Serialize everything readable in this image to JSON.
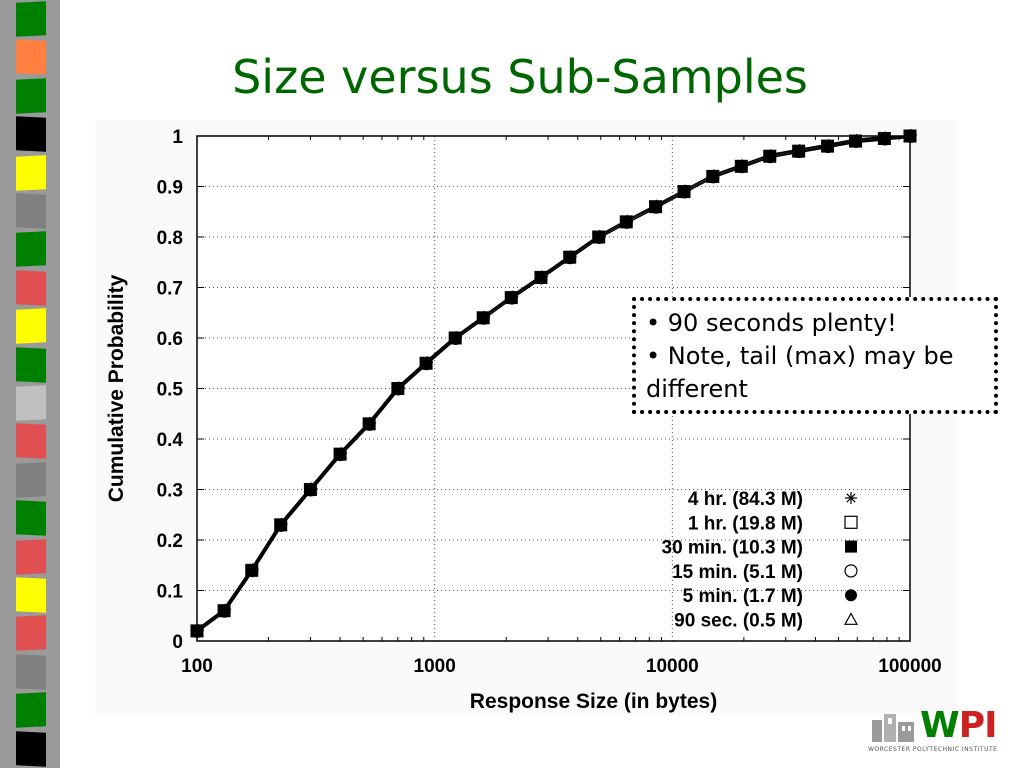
{
  "slide": {
    "title": "Size versus Sub-Samples",
    "title_color": "#006600"
  },
  "decor": {
    "strip_colors": [
      "#008000",
      "#ff8040",
      "#008000",
      "#000000",
      "#ffff00",
      "#808080",
      "#008000",
      "#e05050",
      "#ffff00",
      "#008000",
      "#c0c0c0",
      "#e05050",
      "#808080",
      "#008000",
      "#e05050",
      "#ffff00",
      "#e05050",
      "#808080",
      "#008000",
      "#000000"
    ]
  },
  "callout": {
    "line1": "• 90 seconds plenty!",
    "line2": "• Note, tail (max) may be",
    "line3": "different"
  },
  "logo": {
    "text_w": "W",
    "text_p": "P",
    "text_i": "I",
    "subtext": "WORCESTER POLYTECHNIC INSTITUTE",
    "color_w": "#008000",
    "color_pi": "#cc2222"
  },
  "chart_data": {
    "type": "line",
    "xlabel": "Response Size (in bytes)",
    "ylabel": "Cumulative Probability",
    "x_scale": "log",
    "xlim": [
      100,
      100000
    ],
    "ylim": [
      0,
      1
    ],
    "x_ticks": [
      "100",
      "1000",
      "10000",
      "100000"
    ],
    "y_ticks": [
      "0",
      "0.1",
      "0.2",
      "0.3",
      "0.4",
      "0.5",
      "0.6",
      "0.7",
      "0.8",
      "0.9",
      "1"
    ],
    "grid": true,
    "legend_position": "bottom-right",
    "series": [
      {
        "name": "4 hr. (84.3 M)",
        "marker": "asterisk"
      },
      {
        "name": "1 hr. (19.8 M)",
        "marker": "open-square"
      },
      {
        "name": "30 min. (10.3 M)",
        "marker": "filled-square"
      },
      {
        "name": "15 min. (5.1 M)",
        "marker": "open-circle"
      },
      {
        "name": "5 min. (1.7 M)",
        "marker": "filled-circle"
      },
      {
        "name": "90 sec. (0.5 M)",
        "marker": "open-triangle"
      }
    ],
    "x": [
      100,
      130,
      170,
      225,
      300,
      400,
      530,
      700,
      920,
      1220,
      1600,
      2100,
      2800,
      3700,
      4900,
      6400,
      8500,
      11200,
      14800,
      19500,
      25700,
      34000,
      45000,
      59000,
      78000,
      100000
    ],
    "y": [
      0.02,
      0.06,
      0.14,
      0.23,
      0.3,
      0.37,
      0.43,
      0.5,
      0.55,
      0.6,
      0.64,
      0.68,
      0.72,
      0.76,
      0.8,
      0.83,
      0.86,
      0.89,
      0.92,
      0.94,
      0.96,
      0.97,
      0.98,
      0.99,
      0.995,
      1.0
    ]
  }
}
